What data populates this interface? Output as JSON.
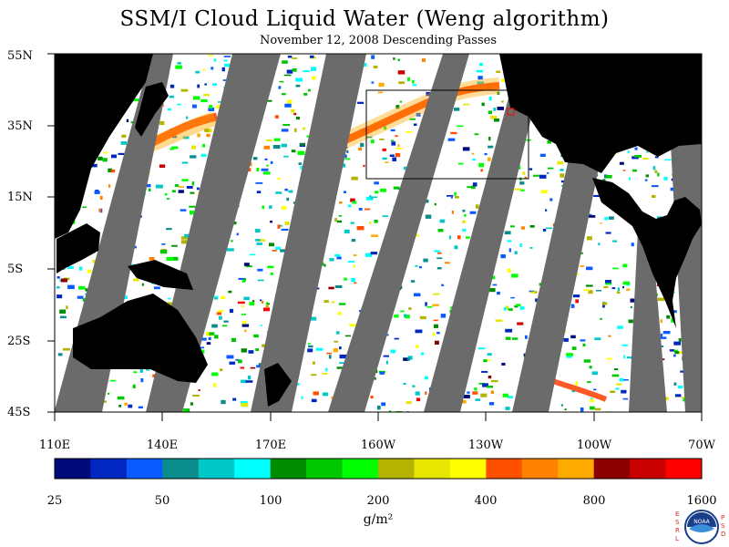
{
  "title": "SSM/I Cloud Liquid Water (Weng algorithm)",
  "subtitle": "November 12, 2008   Descending Passes",
  "lat_labels": [
    "55N",
    "35N",
    "15N",
    "5S",
    "25S",
    "45S"
  ],
  "lon_labels": [
    "110E",
    "140E",
    "170E",
    "160W",
    "130W",
    "100W",
    "70W"
  ],
  "colorbar": {
    "colors": [
      "#000a7a",
      "#0028c0",
      "#0a5aff",
      "#0a8c8c",
      "#00c8c8",
      "#00ffff",
      "#008c00",
      "#00c800",
      "#00ff00",
      "#b4b400",
      "#e6e600",
      "#ffff00",
      "#ff5000",
      "#ff8200",
      "#ffaa00",
      "#8c0000",
      "#c80000",
      "#ff0000"
    ],
    "tick_labels": [
      "25",
      "50",
      "100",
      "200",
      "400",
      "800",
      "1600"
    ],
    "unit": "g/m²"
  },
  "map_colors": {
    "land": "#000000",
    "no_data": "#6b6b6b",
    "clear": "#ffffff"
  },
  "logo": {
    "left_letters": [
      "E",
      "S",
      "R",
      "L"
    ],
    "right_letters": [
      "P",
      "S",
      "D"
    ],
    "emblem_text": "NOAA"
  }
}
